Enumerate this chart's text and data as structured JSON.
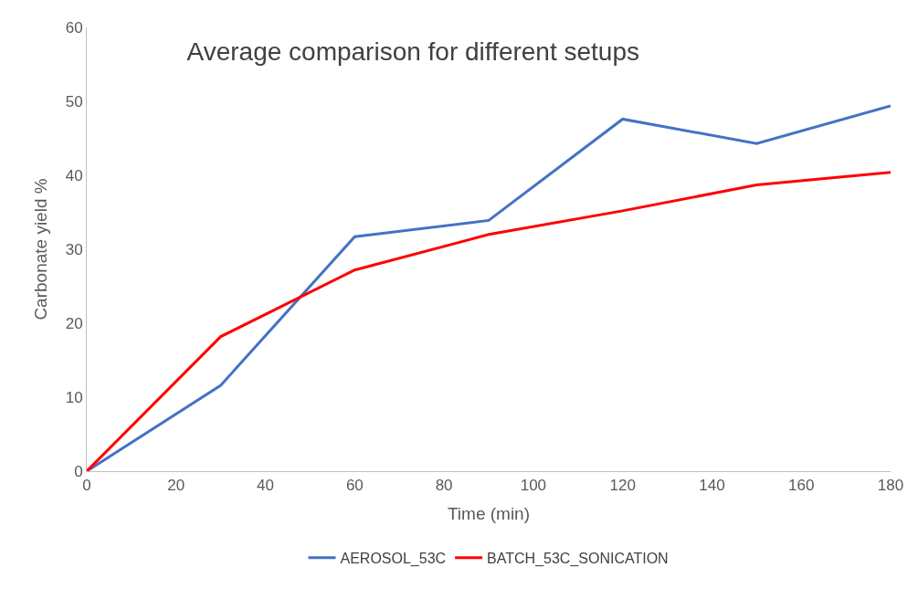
{
  "chart_data": {
    "type": "line",
    "title": "Average comparison for different setups",
    "xlabel": "Time (min)",
    "ylabel": "Carbonate yield %",
    "x": [
      0,
      30,
      60,
      90,
      120,
      150,
      180
    ],
    "series": [
      {
        "name": "AEROSOL_53C",
        "color": "#4472c4",
        "values": [
          0,
          11.6,
          31.7,
          33.9,
          47.6,
          44.3,
          49.4
        ]
      },
      {
        "name": "BATCH_53C_SONICATION",
        "color": "#ff0000",
        "values": [
          0,
          18.2,
          27.2,
          32.0,
          35.2,
          38.7,
          40.4
        ]
      }
    ],
    "xlim": [
      0,
      180
    ],
    "xticks": [
      0,
      20,
      40,
      60,
      80,
      100,
      120,
      140,
      160,
      180
    ],
    "ylim": [
      0,
      60
    ],
    "yticks": [
      0,
      10,
      20,
      30,
      40,
      50,
      60
    ],
    "legend": "bottom",
    "marker": "none",
    "line_style": "solid"
  }
}
